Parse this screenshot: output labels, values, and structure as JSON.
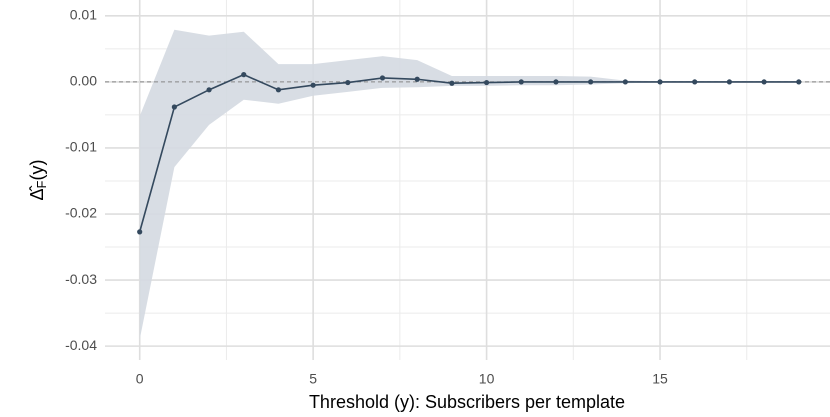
{
  "chart_data": {
    "type": "line",
    "xlabel": "Threshold (y): Subscribers per template",
    "ylabel": [
      "Δ̂",
      "F",
      "(y)"
    ],
    "x": [
      0,
      1,
      2,
      3,
      4,
      5,
      6,
      7,
      8,
      9,
      10,
      11,
      12,
      13,
      14,
      15,
      16,
      17,
      18,
      19
    ],
    "series": [
      {
        "color": "#34495e",
        "values": [
          -0.0227,
          -0.0038,
          -0.0012,
          0.0011,
          -0.0012,
          -0.0005,
          -0.0001,
          0.0006,
          0.0004,
          -0.0002,
          -0.0001,
          0,
          0,
          0,
          0,
          0,
          0,
          0,
          0,
          0
        ],
        "upper": [
          -0.0052,
          0.0079,
          0.007,
          0.0076,
          0.0027,
          0.0027,
          0.0033,
          0.0039,
          0.0033,
          0.0009,
          0.0009,
          0.0009,
          0.0009,
          0.0008,
          0.0002,
          0.0001,
          0.0001,
          0.0001,
          0.0001,
          0.0001
        ],
        "lower": [
          -0.039,
          -0.0129,
          -0.0065,
          -0.0027,
          -0.0033,
          -0.0021,
          -0.0015,
          -0.0009,
          -0.0008,
          -0.0006,
          -0.0006,
          -0.0005,
          -0.0005,
          -0.0004,
          -0.0002,
          -0.0001,
          -0.0001,
          -0.0001,
          -0.0001,
          -0.0001
        ],
        "band_color": "#d4d9e1"
      }
    ],
    "xlim": [
      -1,
      19.9
    ],
    "ylim": [
      -0.0421,
      0.0124
    ],
    "xticks": [
      0,
      5,
      10,
      15
    ],
    "yticks": [
      -0.04,
      -0.03,
      -0.02,
      -0.01,
      {
        "value": 0,
        "label": "0.00"
      },
      0.01
    ],
    "xminor_ticks": [
      2.5,
      7.5,
      12.5,
      17.5
    ],
    "yminor_ticks": [
      -0.035,
      -0.025,
      -0.015,
      -0.005,
      0.005
    ],
    "grid": true,
    "reference_line": 0
  }
}
